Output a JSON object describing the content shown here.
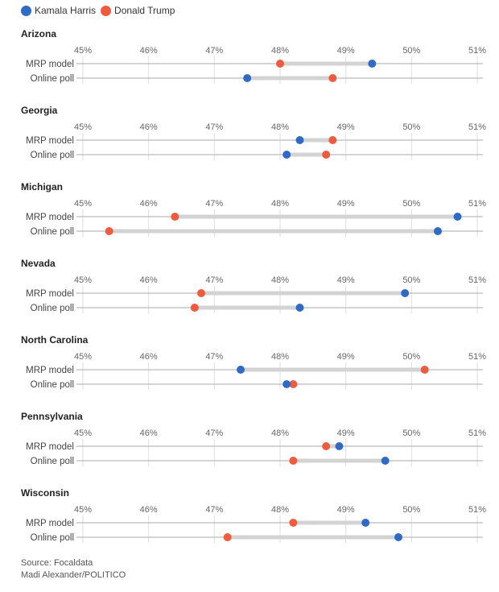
{
  "legend": [
    {
      "name": "Kamala Harris",
      "color": "#2f6bc6"
    },
    {
      "name": "Donald Trump",
      "color": "#f15a3d"
    }
  ],
  "colors": {
    "harris": "#2f6bc6",
    "trump": "#f15a3d",
    "connector": "#d3d3d3",
    "grid": "#dedede",
    "axis": "#aaaaaa"
  },
  "footer": {
    "source": "Source: Focaldata",
    "credit": "Madi Alexander/POLITICO"
  },
  "chart_data": {
    "type": "dot-plot",
    "title": "",
    "xlabel": "",
    "ylabel": "",
    "xlim": [
      45,
      51
    ],
    "x_ticks": [
      45,
      46,
      47,
      48,
      49,
      50,
      51
    ],
    "x_tick_labels": [
      "45%",
      "46%",
      "47%",
      "48%",
      "49%",
      "50%",
      "51%"
    ],
    "grid": true,
    "legend_position": "top-left",
    "row_labels": [
      "MRP model",
      "Online poll"
    ],
    "panels": [
      {
        "state": "Arizona",
        "rows": [
          {
            "label": "MRP model",
            "harris": 49.4,
            "trump": 48.0
          },
          {
            "label": "Online poll",
            "harris": 47.5,
            "trump": 48.8
          }
        ]
      },
      {
        "state": "Georgia",
        "rows": [
          {
            "label": "MRP model",
            "harris": 48.3,
            "trump": 48.8
          },
          {
            "label": "Online poll",
            "harris": 48.1,
            "trump": 48.7
          }
        ]
      },
      {
        "state": "Michigan",
        "rows": [
          {
            "label": "MRP model",
            "harris": 50.7,
            "trump": 46.4
          },
          {
            "label": "Online poll",
            "harris": 50.4,
            "trump": 45.4
          }
        ]
      },
      {
        "state": "Nevada",
        "rows": [
          {
            "label": "MRP model",
            "harris": 49.9,
            "trump": 46.8
          },
          {
            "label": "Online poll",
            "harris": 48.3,
            "trump": 46.7
          }
        ]
      },
      {
        "state": "North Carolina",
        "rows": [
          {
            "label": "MRP model",
            "harris": 47.4,
            "trump": 50.2
          },
          {
            "label": "Online poll",
            "harris": 48.1,
            "trump": 48.2
          }
        ]
      },
      {
        "state": "Pennsylvania",
        "rows": [
          {
            "label": "MRP model",
            "harris": 48.9,
            "trump": 48.7
          },
          {
            "label": "Online poll",
            "harris": 49.6,
            "trump": 48.2
          }
        ]
      },
      {
        "state": "Wisconsin",
        "rows": [
          {
            "label": "MRP model",
            "harris": 49.3,
            "trump": 48.2
          },
          {
            "label": "Online poll",
            "harris": 49.8,
            "trump": 47.2
          }
        ]
      }
    ]
  }
}
